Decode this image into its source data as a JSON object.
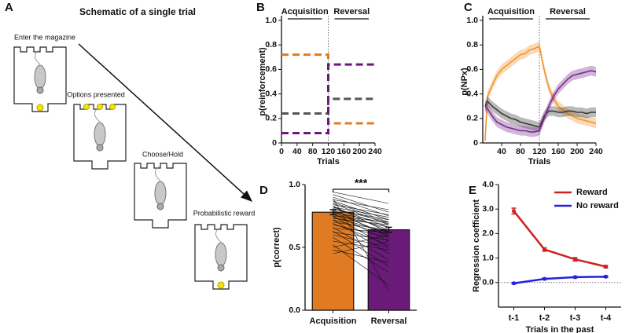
{
  "schematic": {
    "panel": "A",
    "title": "Schematic of a single trial",
    "steps": [
      "Enter the magazine",
      "Options presented",
      "Choose/Hold",
      "Probabilistic reward"
    ]
  },
  "chart_data": [
    {
      "panel": "B",
      "type": "line",
      "style": "dashed",
      "xlabel": "Trials",
      "ylabel": "p(reinforcement)",
      "x": [
        0,
        120,
        120,
        240
      ],
      "series": [
        {
          "color": "#e07b24",
          "values": [
            0.72,
            0.72,
            0.16,
            0.16
          ]
        },
        {
          "color": "#555555",
          "values": [
            0.24,
            0.24,
            0.36,
            0.36
          ]
        },
        {
          "color": "#6a1b7a",
          "values": [
            0.08,
            0.08,
            0.64,
            0.64
          ]
        }
      ],
      "xlim": [
        0,
        240
      ],
      "xticks": [
        0,
        40,
        80,
        120,
        160,
        200,
        240
      ],
      "ylim": [
        0,
        1
      ],
      "yticks": [
        0,
        0.2,
        0.4,
        0.6,
        0.8,
        {
          "value": 1,
          "label": "1.0"
        }
      ],
      "annotations": [
        "Acquisition",
        "Reversal"
      ],
      "divider_x": 120
    },
    {
      "panel": "C",
      "type": "line",
      "style": "band",
      "xlabel": "Trials",
      "ylabel": "p(NPx)",
      "x": [
        5,
        10,
        20,
        30,
        40,
        50,
        60,
        70,
        80,
        90,
        100,
        110,
        120,
        130,
        140,
        150,
        160,
        170,
        180,
        190,
        200,
        210,
        220,
        230,
        240
      ],
      "series": [
        {
          "color": "#f0962e",
          "values": [
            0.02,
            0.38,
            0.47,
            0.55,
            0.6,
            0.63,
            0.66,
            0.69,
            0.72,
            0.73,
            0.76,
            0.77,
            0.79,
            0.6,
            0.45,
            0.36,
            0.3,
            0.27,
            0.24,
            0.22,
            0.2,
            0.19,
            0.18,
            0.17,
            0.16
          ],
          "errors": [
            0.04,
            0.04,
            0.04,
            0.04,
            0.04,
            0.04,
            0.04,
            0.04,
            0.04,
            0.04,
            0.04,
            0.04,
            0.04,
            0.04,
            0.04,
            0.04,
            0.04,
            0.04,
            0.04,
            0.04,
            0.04,
            0.04,
            0.04,
            0.04,
            0.04
          ]
        },
        {
          "color": "#3a3a3a",
          "values": [
            0.3,
            0.34,
            0.3,
            0.27,
            0.24,
            0.22,
            0.2,
            0.19,
            0.17,
            0.16,
            0.15,
            0.14,
            0.13,
            0.22,
            0.26,
            0.26,
            0.25,
            0.25,
            0.26,
            0.26,
            0.25,
            0.25,
            0.24,
            0.25,
            0.25
          ],
          "errors": [
            0.04,
            0.04,
            0.04,
            0.04,
            0.04,
            0.04,
            0.04,
            0.04,
            0.04,
            0.04,
            0.04,
            0.04,
            0.04,
            0.04,
            0.04,
            0.04,
            0.04,
            0.04,
            0.04,
            0.04,
            0.04,
            0.04,
            0.04,
            0.04,
            0.04
          ]
        },
        {
          "color": "#7a2a8c",
          "values": [
            0.3,
            0.28,
            0.22,
            0.17,
            0.15,
            0.13,
            0.12,
            0.11,
            0.1,
            0.1,
            0.09,
            0.09,
            0.1,
            0.2,
            0.3,
            0.38,
            0.44,
            0.48,
            0.52,
            0.55,
            0.56,
            0.57,
            0.58,
            0.59,
            0.58
          ],
          "errors": [
            0.04,
            0.04,
            0.04,
            0.04,
            0.04,
            0.04,
            0.04,
            0.04,
            0.04,
            0.04,
            0.04,
            0.04,
            0.04,
            0.04,
            0.04,
            0.04,
            0.04,
            0.04,
            0.04,
            0.04,
            0.04,
            0.04,
            0.04,
            0.04,
            0.04
          ]
        }
      ],
      "xlim": [
        0,
        240
      ],
      "xticks": [
        40,
        80,
        120,
        160,
        200,
        240
      ],
      "ylim": [
        0,
        1
      ],
      "yticks": [
        0,
        0.2,
        0.4,
        0.6,
        0.8,
        {
          "value": 1,
          "label": "1.0"
        }
      ],
      "annotations": [
        "Acquisition",
        "Reversal"
      ],
      "divider_x": 120
    },
    {
      "panel": "D",
      "type": "bar",
      "ylabel": "p(correct)",
      "categories": [
        "Acquisition",
        "Reversal"
      ],
      "values": [
        0.78,
        0.64
      ],
      "errors": [
        0.02,
        0.02
      ],
      "colors": [
        "#e07b24",
        "#6a1b7a"
      ],
      "ylim": [
        0,
        1
      ],
      "yticks": [
        {
          "value": 0,
          "label": "0.0"
        },
        {
          "value": 0.5,
          "label": "0.5"
        },
        {
          "value": 1,
          "label": "1.0"
        }
      ],
      "paired": [
        [
          0.92,
          0.78
        ],
        [
          0.9,
          0.75
        ],
        [
          0.88,
          0.8
        ],
        [
          0.87,
          0.72
        ],
        [
          0.86,
          0.7
        ],
        [
          0.85,
          0.68
        ],
        [
          0.84,
          0.76
        ],
        [
          0.83,
          0.62
        ],
        [
          0.82,
          0.74
        ],
        [
          0.82,
          0.66
        ],
        [
          0.81,
          0.7
        ],
        [
          0.8,
          0.58
        ],
        [
          0.8,
          0.72
        ],
        [
          0.79,
          0.64
        ],
        [
          0.78,
          0.6
        ],
        [
          0.78,
          0.69
        ],
        [
          0.77,
          0.55
        ],
        [
          0.76,
          0.66
        ],
        [
          0.75,
          0.7
        ],
        [
          0.75,
          0.5
        ],
        [
          0.74,
          0.62
        ],
        [
          0.73,
          0.68
        ],
        [
          0.72,
          0.45
        ],
        [
          0.72,
          0.6
        ],
        [
          0.7,
          0.64
        ],
        [
          0.69,
          0.52
        ],
        [
          0.68,
          0.58
        ],
        [
          0.66,
          0.4
        ],
        [
          0.65,
          0.62
        ],
        [
          0.63,
          0.35
        ],
        [
          0.62,
          0.56
        ],
        [
          0.6,
          0.5
        ],
        [
          0.58,
          0.3
        ],
        [
          0.55,
          0.48
        ],
        [
          0.52,
          0.2
        ],
        [
          0.5,
          0.6
        ],
        [
          0.48,
          0.38
        ],
        [
          0.45,
          0.55
        ],
        [
          0.94,
          0.85
        ],
        [
          0.89,
          0.15
        ]
      ],
      "significance": "***"
    },
    {
      "panel": "E",
      "type": "line",
      "xlabel": "Trials in the past",
      "ylabel": "Regression coefficient",
      "categories": [
        "t-1",
        "t-2",
        "t-3",
        "t-4"
      ],
      "series": [
        {
          "name": "Reward",
          "color": "#cc2222",
          "values": [
            2.92,
            1.35,
            0.95,
            0.65
          ],
          "errors": [
            0.12,
            0.07,
            0.07,
            0.05
          ]
        },
        {
          "name": "No reward",
          "color": "#2222dd",
          "values": [
            -0.03,
            0.15,
            0.22,
            0.24
          ],
          "errors": [
            0.03,
            0.03,
            0.03,
            0.03
          ]
        }
      ],
      "ylim": [
        -1,
        4
      ],
      "yticks": [
        {
          "value": 0,
          "label": "0.0"
        },
        {
          "value": 1,
          "label": "1.0"
        },
        {
          "value": 2,
          "label": "2.0"
        },
        {
          "value": 3,
          "label": "3.0"
        },
        {
          "value": 4,
          "label": "4.0"
        }
      ],
      "legend": "upper right",
      "hline": 0
    }
  ]
}
